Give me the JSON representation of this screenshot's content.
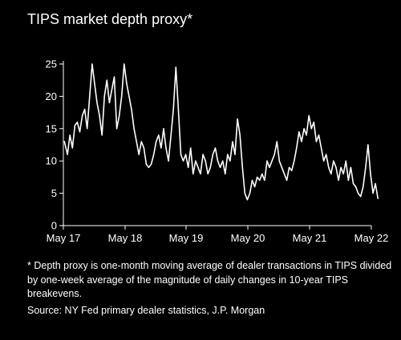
{
  "chart_data": {
    "type": "line",
    "title": "TIPS market depth proxy*",
    "xlabel": "",
    "ylabel": "",
    "x_tick_labels": [
      "May 17",
      "May 18",
      "May 19",
      "May 20",
      "May 21",
      "May 22"
    ],
    "x_range_years": [
      2017.25,
      2022.5
    ],
    "y_tick_labels": [
      "0",
      "5",
      "10",
      "15",
      "20",
      "25"
    ],
    "ylim": [
      0,
      25
    ],
    "grid": false,
    "legend": "none",
    "line_color": "#ffffff",
    "series": [
      {
        "x": [
          2017.35,
          2017.4,
          2017.44,
          2017.48,
          2017.52,
          2017.56,
          2017.6,
          2017.64,
          2017.68,
          2017.72,
          2017.76,
          2017.8,
          2017.84,
          2017.88,
          2017.92,
          2017.96,
          2018.0,
          2018.04,
          2018.08,
          2018.12,
          2018.16,
          2018.2,
          2018.24,
          2018.28,
          2018.32,
          2018.36,
          2018.4,
          2018.44,
          2018.48,
          2018.52,
          2018.56,
          2018.6,
          2018.64,
          2018.68,
          2018.72,
          2018.76,
          2018.8,
          2018.84,
          2018.88,
          2018.92,
          2018.96,
          2019.0,
          2019.04,
          2019.08,
          2019.12,
          2019.16,
          2019.2,
          2019.24,
          2019.28,
          2019.32,
          2019.36,
          2019.4,
          2019.44,
          2019.48,
          2019.52,
          2019.56,
          2019.6,
          2019.64,
          2019.68,
          2019.72,
          2019.76,
          2019.8,
          2019.84,
          2019.88,
          2019.92,
          2019.96,
          2020.0,
          2020.04,
          2020.08,
          2020.12,
          2020.16,
          2020.2,
          2020.24,
          2020.28,
          2020.32,
          2020.36,
          2020.4,
          2020.44,
          2020.48,
          2020.52,
          2020.56,
          2020.6,
          2020.64,
          2020.68,
          2020.72,
          2020.76,
          2020.8,
          2020.84,
          2020.88,
          2020.92,
          2020.96,
          2021.0,
          2021.04,
          2021.08,
          2021.12,
          2021.16,
          2021.2,
          2021.24,
          2021.28,
          2021.32,
          2021.36,
          2021.4,
          2021.44,
          2021.48,
          2021.52,
          2021.56,
          2021.6,
          2021.64,
          2021.68,
          2021.72,
          2021.76,
          2021.8,
          2021.84,
          2021.88,
          2021.92,
          2021.96,
          2022.0,
          2022.04,
          2022.08,
          2022.12,
          2022.16,
          2022.2,
          2022.24,
          2022.28,
          2022.32,
          2022.36,
          2022.4,
          2022.44
        ],
        "values": [
          13.0,
          11.0,
          14.0,
          12.0,
          15.5,
          16.0,
          14.5,
          17.0,
          18.0,
          15.0,
          20.0,
          25.0,
          22.0,
          19.0,
          17.0,
          14.0,
          20.0,
          22.5,
          19.0,
          21.0,
          23.0,
          15.0,
          17.0,
          20.0,
          25.0,
          22.0,
          20.0,
          18.0,
          15.0,
          13.0,
          11.0,
          13.0,
          12.0,
          9.5,
          9.0,
          9.5,
          11.0,
          13.0,
          14.0,
          12.0,
          15.0,
          12.0,
          10.0,
          14.0,
          18.0,
          24.5,
          18.0,
          11.0,
          10.0,
          11.0,
          9.0,
          12.0,
          8.0,
          10.0,
          9.0,
          8.0,
          11.0,
          10.0,
          8.0,
          9.0,
          11.0,
          12.0,
          10.0,
          9.0,
          10.0,
          8.0,
          11.0,
          10.0,
          13.0,
          11.0,
          16.5,
          14.0,
          9.0,
          5.0,
          4.0,
          5.0,
          7.0,
          6.0,
          7.5,
          7.0,
          8.0,
          7.0,
          10.0,
          9.0,
          10.0,
          11.0,
          13.0,
          10.0,
          9.0,
          8.0,
          7.0,
          9.0,
          8.5,
          10.0,
          12.0,
          14.5,
          13.0,
          15.0,
          14.0,
          17.0,
          15.0,
          16.0,
          13.0,
          14.0,
          12.0,
          10.0,
          11.0,
          9.0,
          8.0,
          10.0,
          9.0,
          7.0,
          9.0,
          8.0,
          10.0,
          7.0,
          9.0,
          6.5,
          6.0,
          5.0,
          4.5,
          6.0,
          9.0,
          12.5,
          8.0,
          5.0,
          6.5,
          4.2
        ]
      }
    ]
  },
  "notes": {
    "footnote": "* Depth proxy is one-month moving average of dealer transactions in TIPS divided by one-week average of the magnitude of daily changes in 10-year TIPS breakevens.",
    "source": "Source: NY Fed primary dealer statistics, J.P. Morgan"
  }
}
